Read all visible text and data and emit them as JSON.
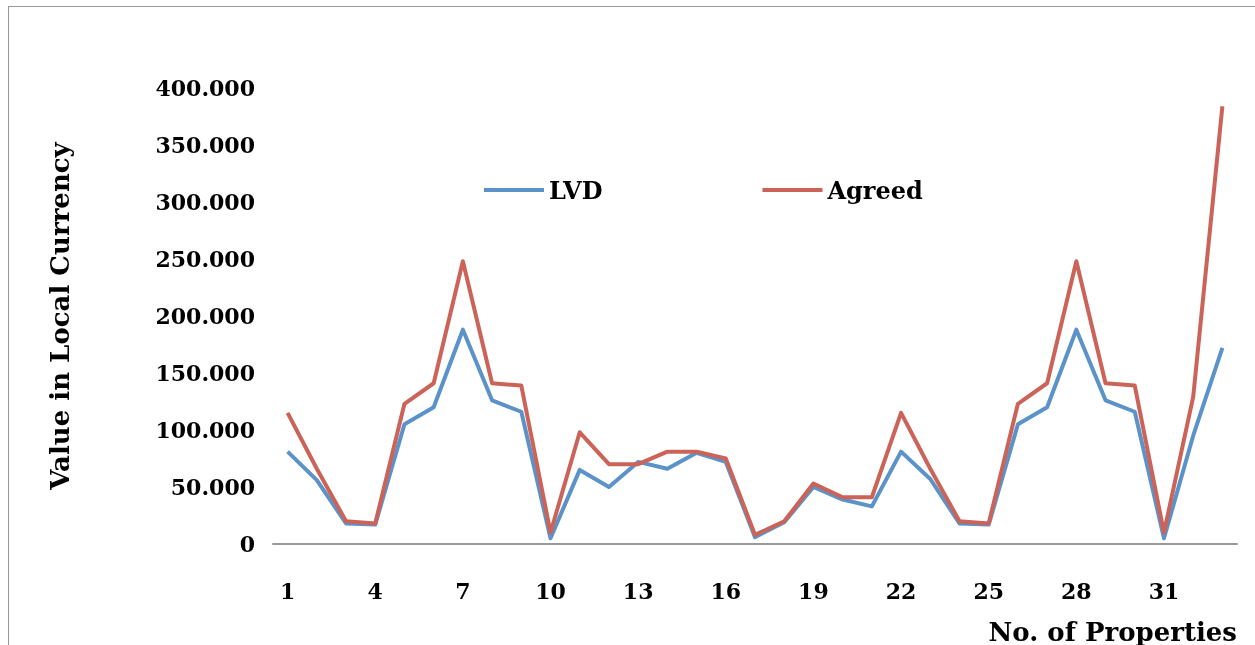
{
  "chart_data": {
    "type": "line",
    "xlabel": "No. of Properties",
    "ylabel": "Value in Local Currency",
    "categories": [
      "1",
      null,
      null,
      "4",
      null,
      null,
      "7",
      null,
      null,
      "10",
      null,
      null,
      "13",
      null,
      null,
      "16",
      null,
      null,
      "19",
      null,
      null,
      "22",
      null,
      null,
      "25",
      null,
      null,
      "28",
      null,
      null,
      "31",
      null,
      null
    ],
    "series": [
      {
        "name": "LVD",
        "color": "#5b93c9",
        "values": [
          81000,
          56000,
          18000,
          17000,
          105000,
          120000,
          188000,
          126000,
          116000,
          5000,
          65000,
          50000,
          72000,
          66000,
          80000,
          72000,
          6000,
          19000,
          50000,
          39000,
          33000,
          81000,
          57000,
          18000,
          17000,
          105000,
          120000,
          188000,
          126000,
          116000,
          5000,
          95000,
          172000
        ]
      },
      {
        "name": "Agreed",
        "color": "#cc6359",
        "values": [
          115000,
          66000,
          20000,
          18000,
          123000,
          141000,
          248000,
          141000,
          139000,
          10000,
          98000,
          70000,
          70000,
          81000,
          81000,
          75000,
          8000,
          20000,
          53000,
          41000,
          41000,
          115000,
          66000,
          20000,
          18000,
          123000,
          141000,
          248000,
          141000,
          139000,
          10000,
          129000,
          384000
        ]
      }
    ],
    "ylim": [
      0,
      400000
    ],
    "yticks": [
      {
        "value": 0,
        "label": "0"
      },
      {
        "value": 50000,
        "label": "50.000"
      },
      {
        "value": 100000,
        "label": "100.000"
      },
      {
        "value": 150000,
        "label": "150.000"
      },
      {
        "value": 200000,
        "label": "200.000"
      },
      {
        "value": 250000,
        "label": "250.000"
      },
      {
        "value": 300000,
        "label": "300.000"
      },
      {
        "value": 350000,
        "label": "350.000"
      },
      {
        "value": 400000,
        "label": "400.000"
      }
    ],
    "grid": false,
    "legend": "top",
    "marker": "none",
    "line_style": "solid"
  }
}
